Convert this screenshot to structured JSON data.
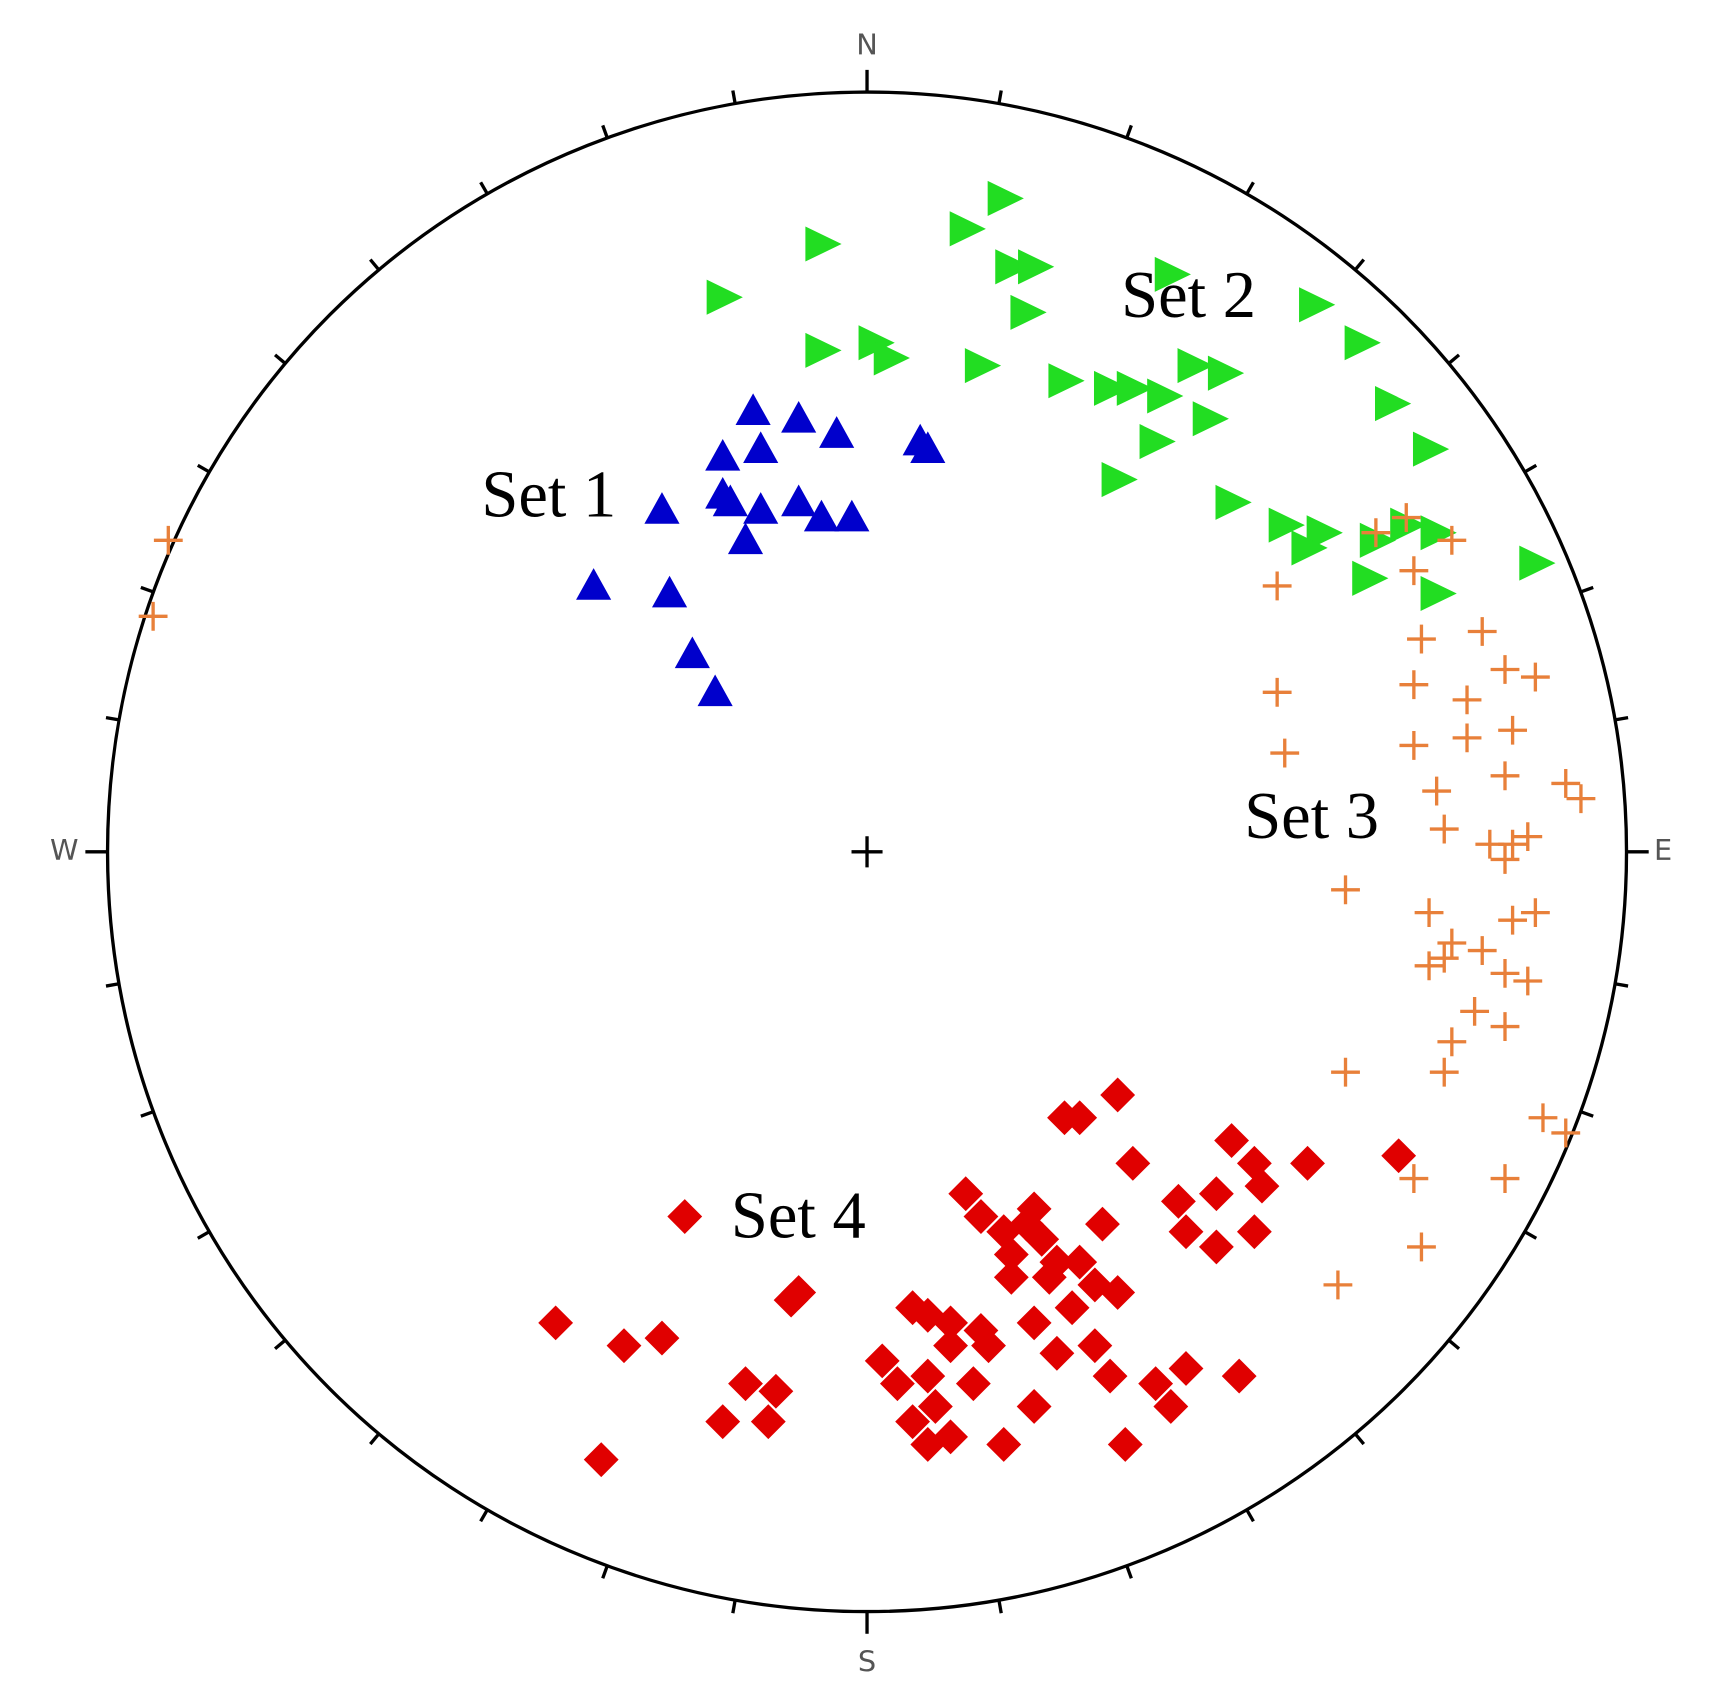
{
  "chart_data": {
    "type": "scatter",
    "xlim": [
      -1,
      1
    ],
    "ylim": [
      -1,
      1
    ],
    "direction_labels": [
      "N",
      "E",
      "S",
      "W"
    ],
    "series": [
      {
        "name": "Set 1",
        "color": "#0000cc",
        "marker": "triangle-up",
        "x": [
          -0.15,
          -0.09,
          -0.04,
          0.07,
          0.08,
          -0.19,
          -0.14,
          -0.27,
          -0.19,
          -0.14,
          -0.09,
          -0.06,
          -0.02,
          -0.16,
          -0.36,
          -0.26,
          -0.23,
          -0.2,
          -0.18
        ],
        "y": [
          0.58,
          0.57,
          0.55,
          0.54,
          0.53,
          0.52,
          0.53,
          0.45,
          0.47,
          0.45,
          0.46,
          0.44,
          0.44,
          0.41,
          0.35,
          0.34,
          0.26,
          0.21,
          0.46
        ]
      },
      {
        "name": "Set 2",
        "color": "#22dd22",
        "marker": "triangle-right",
        "x": [
          0.18,
          0.13,
          -0.06,
          0.19,
          0.22,
          -0.19,
          0.4,
          0.21,
          0.59,
          0.65,
          -0.06,
          0.01,
          0.03,
          0.15,
          0.26,
          0.32,
          0.35,
          0.43,
          0.47,
          0.39,
          0.45,
          0.38,
          0.69,
          0.74,
          0.33,
          0.48,
          0.55,
          0.6,
          0.67,
          0.75,
          0.58,
          0.66,
          0.75,
          0.88,
          0.71
        ],
        "y": [
          0.86,
          0.82,
          0.8,
          0.77,
          0.77,
          0.73,
          0.76,
          0.71,
          0.72,
          0.67,
          0.66,
          0.67,
          0.65,
          0.64,
          0.62,
          0.61,
          0.61,
          0.64,
          0.63,
          0.6,
          0.57,
          0.54,
          0.59,
          0.53,
          0.49,
          0.46,
          0.43,
          0.42,
          0.41,
          0.42,
          0.4,
          0.36,
          0.34,
          0.38,
          0.43
        ]
      },
      {
        "name": "Set 3",
        "color": "#e8803a",
        "marker": "plus",
        "x": [
          -0.92,
          -0.94,
          0.71,
          0.67,
          0.77,
          0.54,
          0.72,
          0.73,
          0.81,
          0.84,
          0.88,
          0.54,
          0.72,
          0.79,
          0.85,
          0.55,
          0.72,
          0.79,
          0.84,
          0.75,
          0.92,
          0.94,
          0.76,
          0.82,
          0.85,
          0.87,
          0.84,
          0.63,
          0.74,
          0.88,
          0.85,
          0.77,
          0.76,
          0.74,
          0.81,
          0.84,
          0.87,
          0.8,
          0.84,
          0.77,
          0.63,
          0.76,
          0.89,
          0.92,
          0.72,
          0.84,
          0.73,
          0.62
        ],
        "y": [
          0.41,
          0.31,
          0.44,
          0.42,
          0.41,
          0.35,
          0.37,
          0.28,
          0.29,
          0.24,
          0.23,
          0.21,
          0.22,
          0.2,
          0.16,
          0.13,
          0.14,
          0.15,
          0.1,
          0.08,
          0.09,
          0.07,
          0.03,
          0.01,
          0.01,
          0.02,
          -0.01,
          -0.05,
          -0.08,
          -0.08,
          -0.09,
          -0.12,
          -0.14,
          -0.15,
          -0.13,
          -0.16,
          -0.17,
          -0.21,
          -0.23,
          -0.25,
          -0.29,
          -0.29,
          -0.35,
          -0.37,
          -0.43,
          -0.43,
          -0.52,
          -0.57
        ]
      },
      {
        "name": "Set 4",
        "color": "#e00000",
        "marker": "diamond",
        "x": [
          0.33,
          0.26,
          0.28,
          0.48,
          0.35,
          0.51,
          0.58,
          0.7,
          0.13,
          0.41,
          0.46,
          0.52,
          -0.24,
          0.22,
          0.15,
          0.18,
          0.21,
          0.23,
          0.31,
          0.42,
          0.51,
          0.46,
          0.19,
          0.25,
          0.28,
          0.19,
          0.24,
          0.3,
          0.33,
          -0.09,
          -0.1,
          0.06,
          0.08,
          0.11,
          0.15,
          0.22,
          0.27,
          -0.41,
          -0.32,
          -0.27,
          0.11,
          0.16,
          0.25,
          0.3,
          0.02,
          0.04,
          0.08,
          0.14,
          0.32,
          0.42,
          0.49,
          -0.16,
          -0.12,
          0.09,
          0.22,
          0.4,
          -0.13,
          -0.19,
          0.06,
          0.08,
          0.11,
          0.18,
          0.34,
          -0.35,
          0.38
        ],
        "y": [
          -0.32,
          -0.35,
          -0.35,
          -0.38,
          -0.41,
          -0.41,
          -0.41,
          -0.4,
          -0.45,
          -0.46,
          -0.45,
          -0.44,
          -0.48,
          -0.47,
          -0.48,
          -0.5,
          -0.49,
          -0.51,
          -0.49,
          -0.5,
          -0.5,
          -0.52,
          -0.53,
          -0.54,
          -0.54,
          -0.56,
          -0.56,
          -0.57,
          -0.58,
          -0.58,
          -0.59,
          -0.6,
          -0.61,
          -0.62,
          -0.63,
          -0.62,
          -0.6,
          -0.62,
          -0.65,
          -0.64,
          -0.65,
          -0.65,
          -0.66,
          -0.65,
          -0.67,
          -0.7,
          -0.69,
          -0.7,
          -0.69,
          -0.68,
          -0.69,
          -0.7,
          -0.71,
          -0.73,
          -0.73,
          -0.73,
          -0.75,
          -0.75,
          -0.75,
          -0.78,
          -0.77,
          -0.78,
          -0.78,
          -0.8,
          -0.7
        ]
      }
    ]
  }
}
